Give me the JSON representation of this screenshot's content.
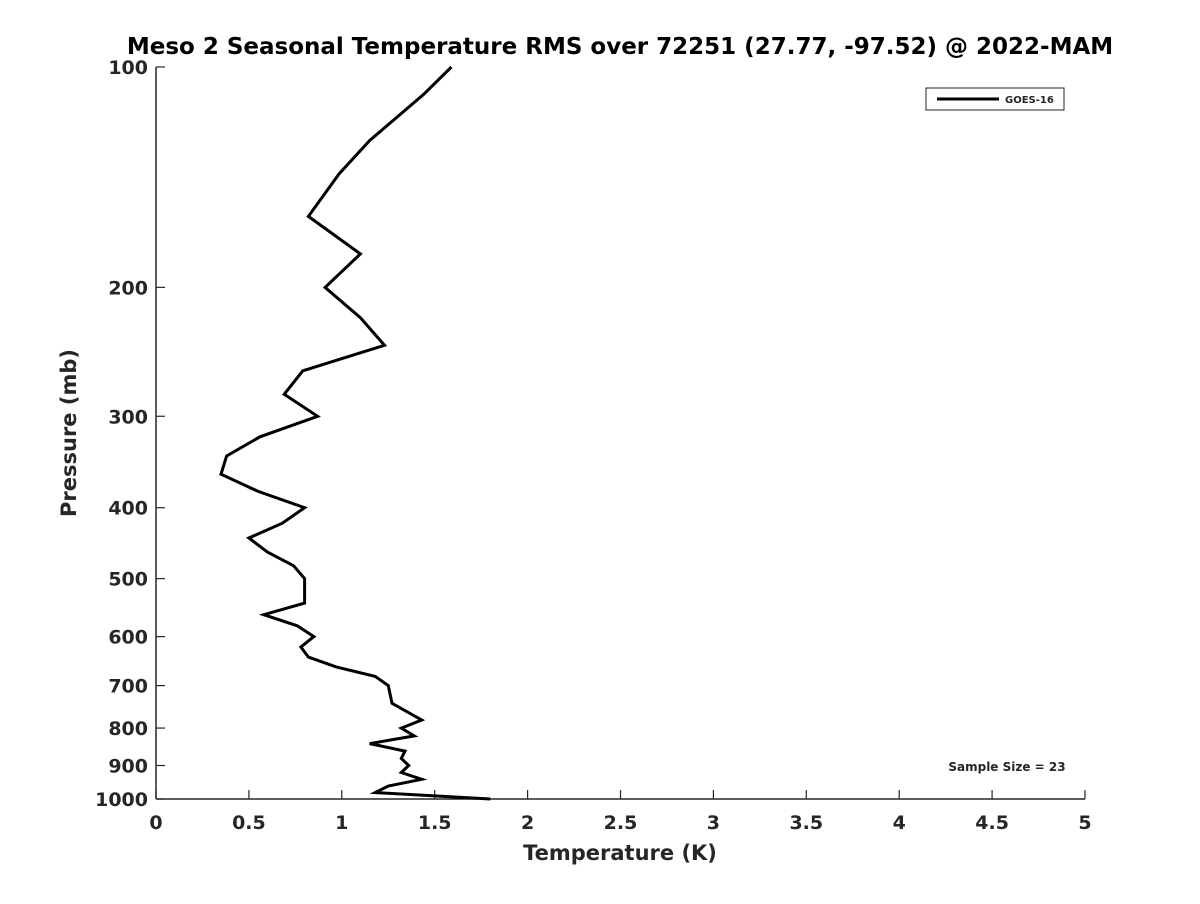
{
  "chart_data": {
    "type": "line",
    "title": "Meso 2 Seasonal Temperature RMS over 72251 (27.77, -97.52) @ 2022-MAM",
    "xlabel": "Temperature (K)",
    "ylabel": "Pressure (mb)",
    "xlim": [
      0,
      5
    ],
    "ylim": [
      100,
      1000
    ],
    "yscale": "log",
    "y_reversed": true,
    "xticks": [
      "0",
      "0.5",
      "1",
      "1.5",
      "2",
      "2.5",
      "3",
      "3.5",
      "4",
      "4.5",
      "5"
    ],
    "xtick_values": [
      0,
      0.5,
      1,
      1.5,
      2,
      2.5,
      3,
      3.5,
      4,
      4.5,
      5
    ],
    "yticks": [
      "100",
      "200",
      "300",
      "400",
      "500",
      "600",
      "700",
      "800",
      "900",
      "1000"
    ],
    "ytick_values": [
      100,
      200,
      300,
      400,
      500,
      600,
      700,
      800,
      900,
      1000
    ],
    "grid": false,
    "legend_position": "top-right",
    "annotation": "Sample Size = 23",
    "series": [
      {
        "name": "GOES-16",
        "color": "#000000",
        "points": [
          [
            1.59,
            100
          ],
          [
            1.44,
            109
          ],
          [
            1.15,
            126
          ],
          [
            0.985,
            140
          ],
          [
            0.82,
            160
          ],
          [
            1.1,
            180
          ],
          [
            0.91,
            200
          ],
          [
            1.1,
            220
          ],
          [
            1.23,
            240
          ],
          [
            0.79,
            260
          ],
          [
            0.69,
            280
          ],
          [
            0.87,
            300
          ],
          [
            0.56,
            320
          ],
          [
            0.38,
            340
          ],
          [
            0.35,
            360
          ],
          [
            0.55,
            380
          ],
          [
            0.8,
            400
          ],
          [
            0.68,
            420
          ],
          [
            0.5,
            440
          ],
          [
            0.6,
            460
          ],
          [
            0.74,
            480
          ],
          [
            0.8,
            500
          ],
          [
            0.8,
            540
          ],
          [
            0.58,
            560
          ],
          [
            0.76,
            580
          ],
          [
            0.85,
            600
          ],
          [
            0.78,
            620
          ],
          [
            0.82,
            640
          ],
          [
            0.97,
            660
          ],
          [
            1.18,
            680
          ],
          [
            1.25,
            700
          ],
          [
            1.27,
            740
          ],
          [
            1.43,
            780
          ],
          [
            1.32,
            800
          ],
          [
            1.39,
            820
          ],
          [
            1.15,
            840
          ],
          [
            1.34,
            860
          ],
          [
            1.32,
            880
          ],
          [
            1.36,
            900
          ],
          [
            1.32,
            920
          ],
          [
            1.43,
            940
          ],
          [
            1.25,
            960
          ],
          [
            1.18,
            980
          ],
          [
            1.8,
            1000
          ]
        ]
      }
    ]
  }
}
